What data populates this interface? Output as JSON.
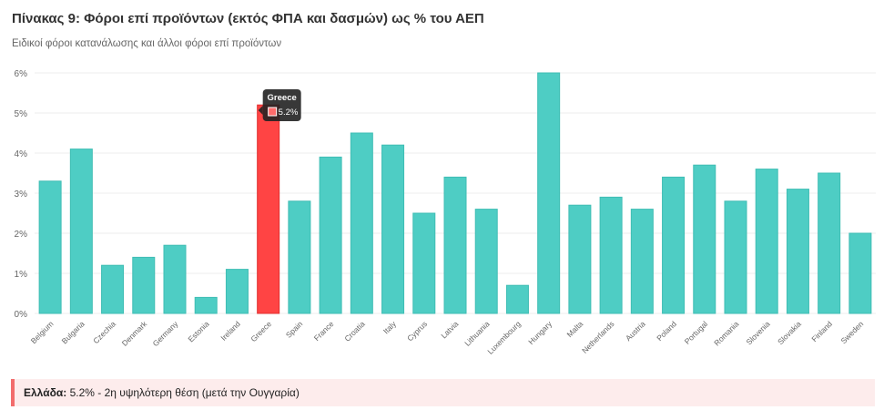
{
  "title": "Πίνακας 9: Φόροι επί προϊόντων (εκτός ΦΠΑ και δασμών) ως % του ΑΕΠ",
  "subtitle": "Ειδικοί φόροι κατανάλωσης και άλλοι φόροι επί προϊόντων",
  "colors": {
    "bar": "#4ecdc4",
    "highlight": "#ff4444",
    "grid": "#eeeeee"
  },
  "chart_data": {
    "type": "bar",
    "categories": [
      "Belgium",
      "Bulgaria",
      "Czechia",
      "Denmark",
      "Germany",
      "Estonia",
      "Ireland",
      "Greece",
      "Spain",
      "France",
      "Croatia",
      "Italy",
      "Cyprus",
      "Latvia",
      "Lithuania",
      "Luxembourg",
      "Hungary",
      "Malta",
      "Netherlands",
      "Austria",
      "Poland",
      "Portugal",
      "Romania",
      "Slovenia",
      "Slovakia",
      "Finland",
      "Sweden"
    ],
    "values": [
      3.3,
      4.1,
      1.2,
      1.4,
      1.7,
      0.4,
      1.1,
      5.2,
      2.8,
      3.9,
      4.5,
      4.2,
      2.5,
      3.4,
      2.6,
      0.7,
      6.0,
      2.7,
      2.9,
      2.6,
      3.4,
      3.7,
      2.8,
      3.6,
      3.1,
      3.5,
      2.0
    ],
    "highlight": "Greece",
    "ylim": [
      0,
      6
    ],
    "yticks": [
      "0%",
      "1%",
      "2%",
      "3%",
      "4%",
      "5%",
      "6%"
    ],
    "grid": true,
    "tooltip": {
      "title": "Greece",
      "value": "5.2%"
    }
  },
  "note": {
    "label": "Ελλάδα:",
    "text": " 5.2% - 2η υψηλότερη θέση (μετά την Ουγγαρία)"
  }
}
